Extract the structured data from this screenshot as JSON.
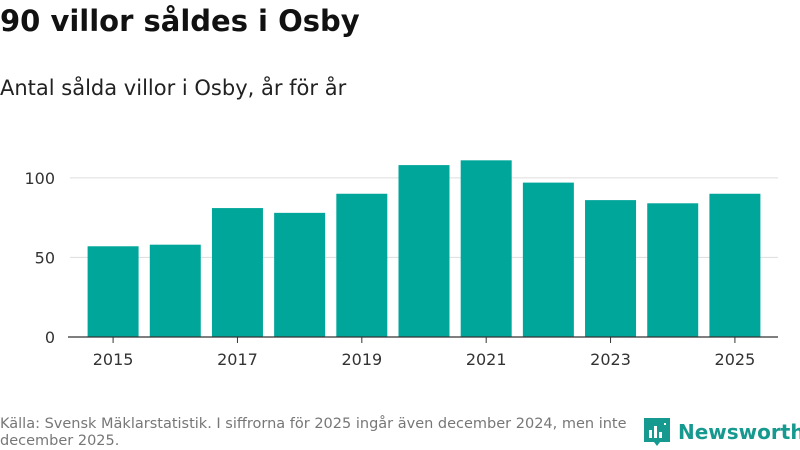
{
  "title": "90 villor såldes i Osby",
  "source": "Källa: Svensk Mäklarstatistik. I siffrorna för 2025 ingår även december 2024, men inte december 2025.",
  "brand": {
    "name": "Newsworthy",
    "icon": "newsworthy-logo-icon"
  },
  "colors": {
    "bar": "#00a69a",
    "brand": "#16998e",
    "grid": "#dddddd",
    "axis": "#333333"
  },
  "chart_data": {
    "type": "bar",
    "title": "Antal sålda villor i Osby, år för år",
    "xlabel": "",
    "ylabel": "",
    "categories": [
      "2015",
      "2016",
      "2017",
      "2018",
      "2019",
      "2020",
      "2021",
      "2022",
      "2023",
      "2024",
      "2025"
    ],
    "values": [
      57,
      58,
      81,
      78,
      90,
      108,
      111,
      97,
      86,
      84,
      90
    ],
    "ylim": [
      0,
      120
    ],
    "yticks": [
      0,
      50,
      100
    ],
    "xticks": [
      "2015",
      "2017",
      "2019",
      "2021",
      "2023",
      "2025"
    ],
    "grid": true,
    "legend": "none"
  }
}
